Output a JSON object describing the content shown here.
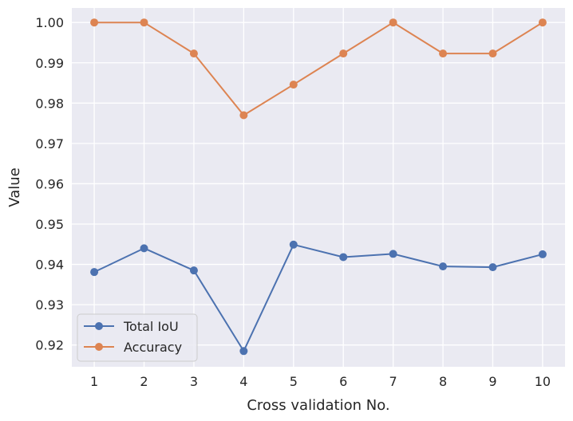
{
  "chart_data": {
    "type": "line",
    "title": "",
    "xlabel": "Cross validation No.",
    "ylabel": "Value",
    "x": [
      1,
      2,
      3,
      4,
      5,
      6,
      7,
      8,
      9,
      10
    ],
    "xticks": [
      "1",
      "2",
      "3",
      "4",
      "5",
      "6",
      "7",
      "8",
      "9",
      "10"
    ],
    "yticks": [
      0.92,
      0.93,
      0.94,
      0.95,
      0.96,
      0.97,
      0.98,
      0.99,
      1.0
    ],
    "ytick_labels": [
      "0.92",
      "0.93",
      "0.94",
      "0.95",
      "0.96",
      "0.97",
      "0.98",
      "0.99",
      "1.00"
    ],
    "xlim": [
      0.55,
      10.45
    ],
    "ylim": [
      0.9146,
      1.0036
    ],
    "grid": true,
    "legend_position": "lower-left",
    "series": [
      {
        "name": "Total IoU",
        "color": "#4c72b0",
        "values": [
          0.9381,
          0.944,
          0.9385,
          0.9185,
          0.9449,
          0.9418,
          0.9426,
          0.9395,
          0.9393,
          0.9425
        ]
      },
      {
        "name": "Accuracy",
        "color": "#dd8452",
        "values": [
          1.0,
          1.0,
          0.9923,
          0.977,
          0.9846,
          0.9923,
          1.0,
          0.9923,
          0.9923,
          1.0
        ]
      }
    ],
    "background_color": "#eaeaf2",
    "grid_color": "#ffffff"
  }
}
